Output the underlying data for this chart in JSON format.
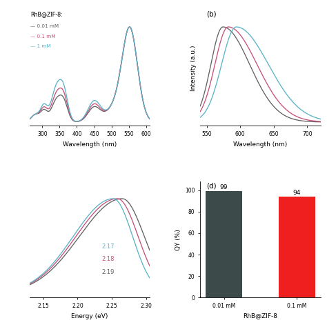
{
  "colors": {
    "gray": "#636363",
    "pink": "#c8507a",
    "cyan": "#5ab4c8"
  },
  "panel_b_label": "(b)",
  "panel_d_label": "(d)",
  "panel_d_categories": [
    "0.01 mM",
    "0.1 mM"
  ],
  "panel_d_values": [
    99,
    94
  ],
  "panel_d_colors": [
    "#3d4a4a",
    "#f01f1f"
  ],
  "panel_d_ylabel": "QY (%)",
  "panel_d_xlabel": "RhB@ZIF-8",
  "panel_d_ylim": [
    0,
    108
  ],
  "panel_d_yticks": [
    0,
    20,
    40,
    60,
    80,
    100
  ]
}
